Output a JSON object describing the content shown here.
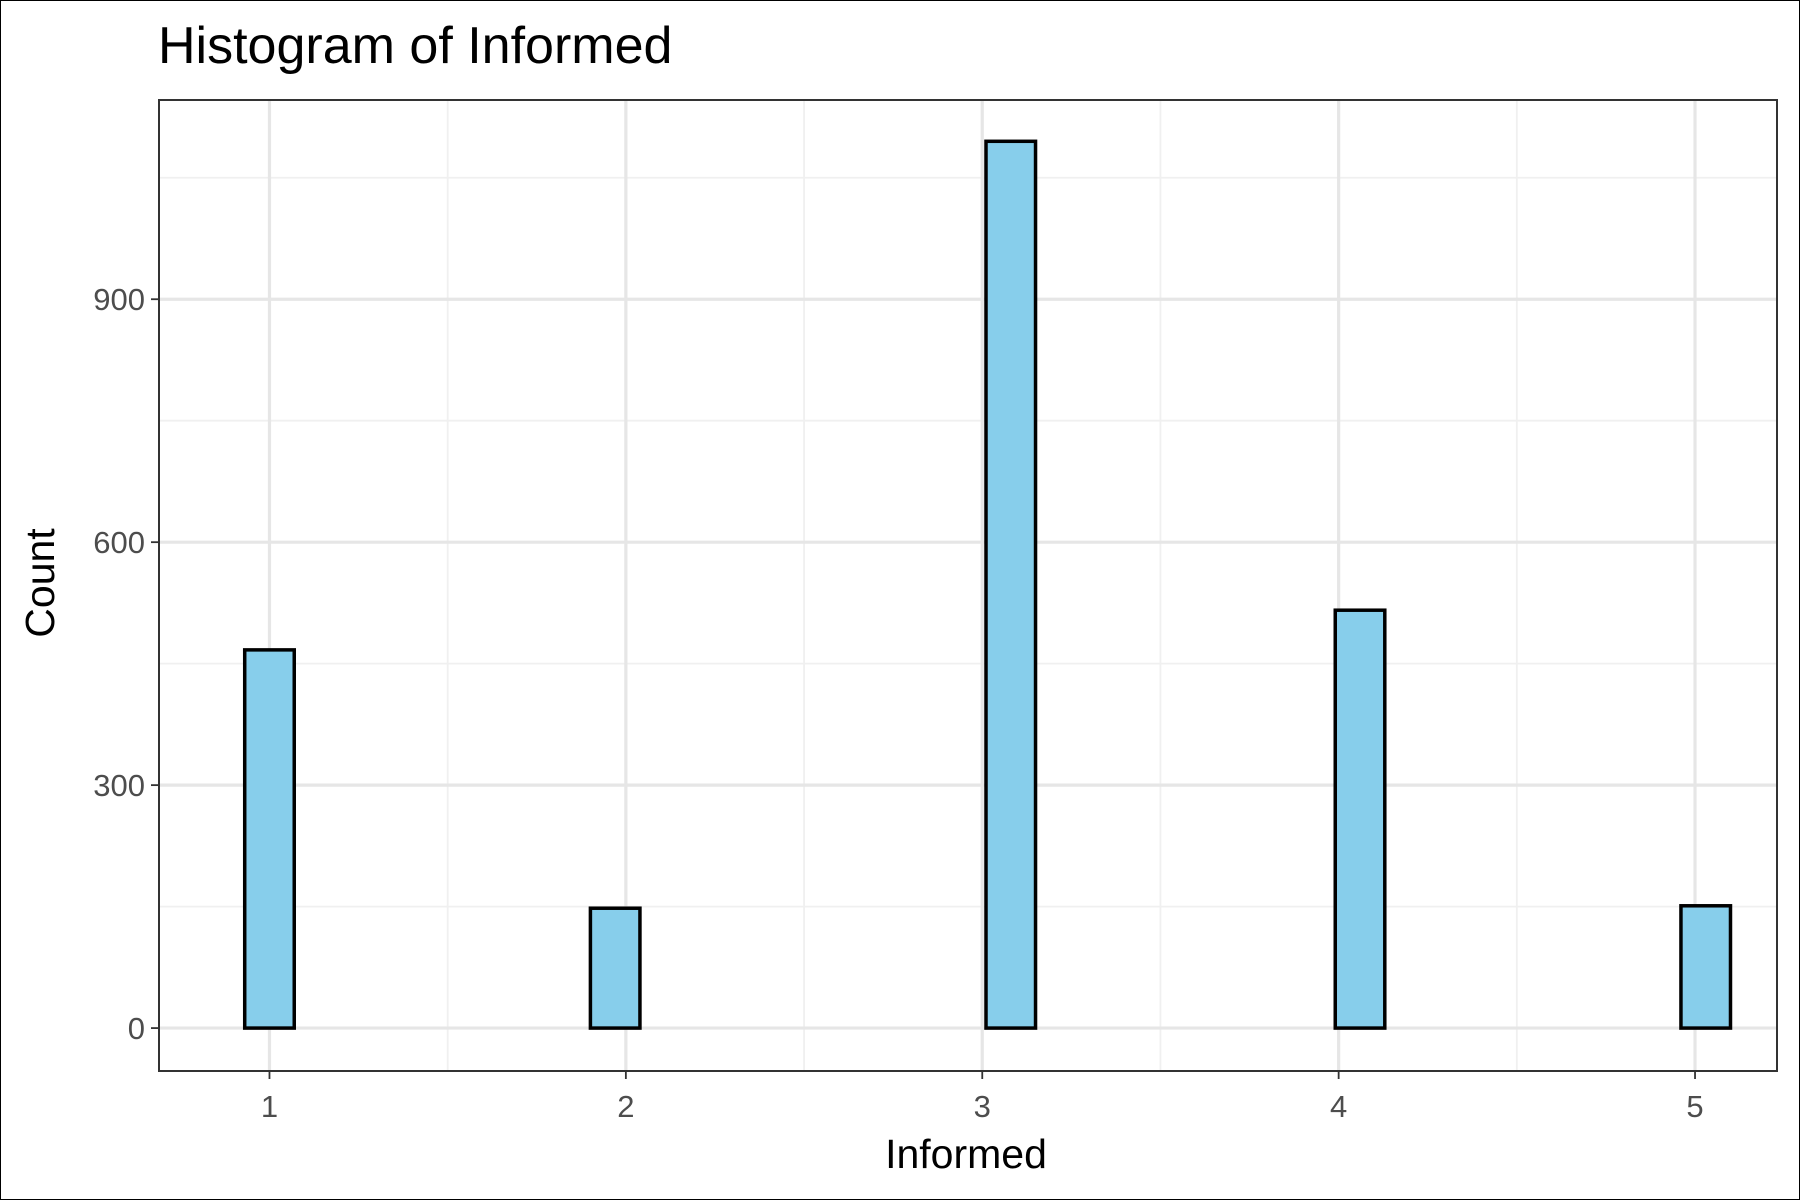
{
  "chart_data": {
    "type": "bar",
    "title": "Histogram of Informed",
    "xlabel": "Informed",
    "ylabel": "Count",
    "x_ticks": [
      "1",
      "2",
      "3",
      "4",
      "5"
    ],
    "y_ticks": [
      "0",
      "300",
      "600",
      "900"
    ],
    "xlim": [
      0.69,
      5.23
    ],
    "ylim": [
      -53,
      1146
    ],
    "grid": true,
    "legend": "none",
    "bin_width": 0.139,
    "bars": [
      {
        "x": 1.0,
        "count": 467
      },
      {
        "x": 1.14,
        "count": 0
      },
      {
        "x": 1.28,
        "count": 0
      },
      {
        "x": 1.42,
        "count": 0
      },
      {
        "x": 1.56,
        "count": 0
      },
      {
        "x": 1.69,
        "count": 0
      },
      {
        "x": 1.83,
        "count": 0
      },
      {
        "x": 1.97,
        "count": 148
      },
      {
        "x": 2.11,
        "count": 0
      },
      {
        "x": 2.25,
        "count": 0
      },
      {
        "x": 2.39,
        "count": 0
      },
      {
        "x": 2.53,
        "count": 0
      },
      {
        "x": 2.67,
        "count": 0
      },
      {
        "x": 2.81,
        "count": 0
      },
      {
        "x": 2.94,
        "count": 0
      },
      {
        "x": 3.08,
        "count": 1095
      },
      {
        "x": 3.22,
        "count": 0
      },
      {
        "x": 3.36,
        "count": 0
      },
      {
        "x": 3.5,
        "count": 0
      },
      {
        "x": 3.64,
        "count": 0
      },
      {
        "x": 3.78,
        "count": 0
      },
      {
        "x": 3.92,
        "count": 0
      },
      {
        "x": 4.06,
        "count": 516
      },
      {
        "x": 4.19,
        "count": 0
      },
      {
        "x": 4.33,
        "count": 0
      },
      {
        "x": 4.47,
        "count": 0
      },
      {
        "x": 4.61,
        "count": 0
      },
      {
        "x": 4.75,
        "count": 0
      },
      {
        "x": 4.89,
        "count": 0
      },
      {
        "x": 5.03,
        "count": 151
      }
    ],
    "colors": {
      "bar_fill": "#87ceeb",
      "bar_outline": "#000000"
    }
  }
}
